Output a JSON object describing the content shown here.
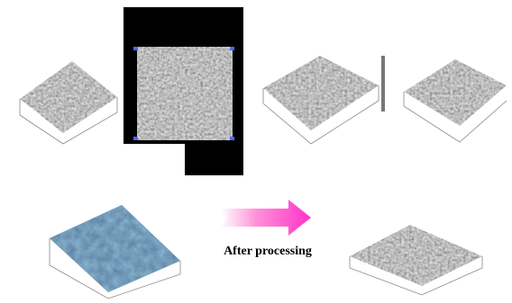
{
  "caption": "After processing"
}
